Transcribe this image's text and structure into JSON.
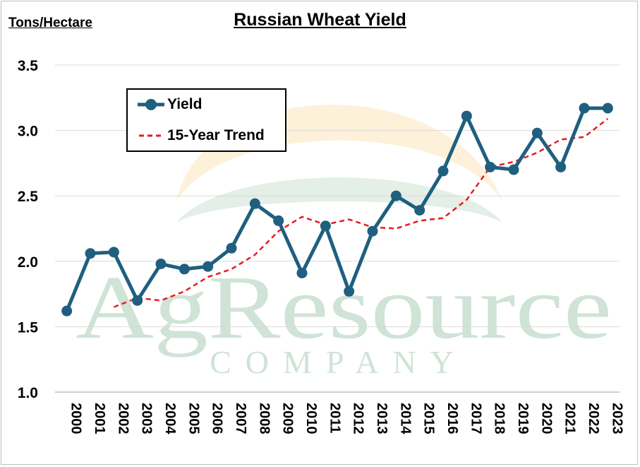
{
  "watermark": {
    "name": "AgResource",
    "sub": "COMPANY"
  },
  "chart_data": {
    "type": "line",
    "title": "Russian Wheat Yield",
    "ylabel": "Tons/Hectare",
    "xlabel": "",
    "ylim": [
      1.0,
      3.5
    ],
    "yticks": [
      "1.0",
      "1.5",
      "2.0",
      "2.5",
      "3.0",
      "3.5"
    ],
    "grid": true,
    "legend_position": "top-left",
    "x": [
      "2000",
      "2001",
      "2002",
      "2003",
      "2004",
      "2005",
      "2006",
      "2007",
      "2008",
      "2009",
      "2010",
      "2011",
      "2012",
      "2013",
      "2014",
      "2015",
      "2016",
      "2017",
      "2018",
      "2019",
      "2020",
      "2021",
      "2022",
      "2023"
    ],
    "series": [
      {
        "name": "Yield",
        "style": "solid-markers",
        "color": "#1f5f7f",
        "values": [
          1.62,
          2.06,
          2.07,
          1.7,
          1.98,
          1.94,
          1.96,
          2.1,
          2.44,
          2.31,
          1.91,
          2.27,
          1.77,
          2.23,
          2.5,
          2.39,
          2.69,
          3.11,
          2.72,
          2.7,
          2.98,
          2.72,
          3.17,
          3.17
        ]
      },
      {
        "name": "15-Year Trend",
        "style": "dashed",
        "color": "#e31e24",
        "values": [
          null,
          null,
          1.65,
          1.72,
          1.7,
          1.77,
          1.88,
          1.94,
          2.05,
          2.23,
          2.34,
          2.28,
          2.32,
          2.26,
          2.25,
          2.31,
          2.33,
          2.47,
          2.72,
          2.76,
          2.83,
          2.93,
          2.95,
          3.09
        ]
      }
    ]
  }
}
